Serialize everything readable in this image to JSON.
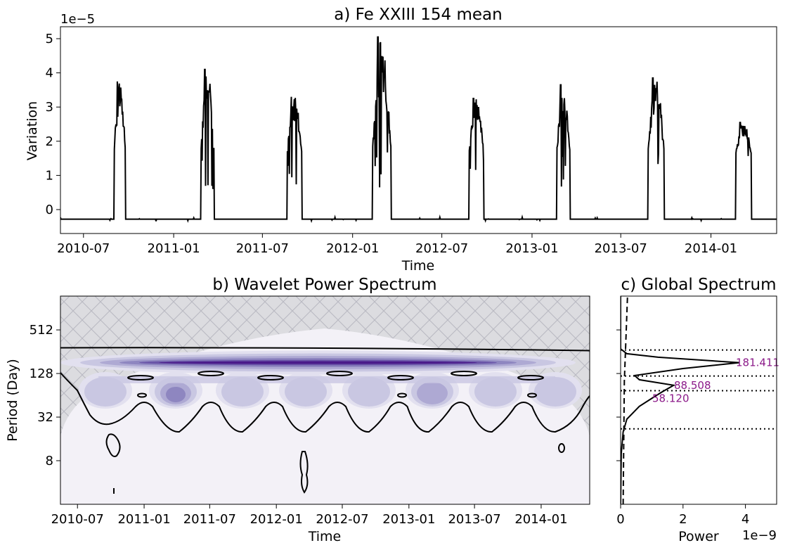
{
  "chart_data": [
    {
      "id": "a",
      "type": "line",
      "title": "a) Fe XXIII 154 mean",
      "xlabel": "Time",
      "ylabel": "Variation",
      "offset_label": "1e−5",
      "x_ticks": [
        "2010-07",
        "2011-01",
        "2011-07",
        "2012-01",
        "2012-07",
        "2013-01",
        "2013-07",
        "2014-01"
      ],
      "y_ticks": [
        "0",
        "1",
        "2",
        "3",
        "4",
        "5"
      ],
      "xlim": [
        "2010-05-15",
        "2014-05-15"
      ],
      "ylim": [
        -0.7,
        5.35
      ],
      "baseline": -0.28,
      "bursts": [
        {
          "start": "2010-09-01",
          "end": "2010-09-25",
          "peak": 3.75
        },
        {
          "start": "2011-02-25",
          "end": "2011-03-25",
          "peak": 4.1
        },
        {
          "start": "2011-08-20",
          "end": "2011-09-20",
          "peak": 3.3
        },
        {
          "start": "2012-02-10",
          "end": "2012-03-20",
          "peak": 5.05
        },
        {
          "start": "2012-08-25",
          "end": "2012-09-25",
          "peak": 3.25
        },
        {
          "start": "2013-02-20",
          "end": "2013-03-20",
          "peak": 3.65
        },
        {
          "start": "2013-08-25",
          "end": "2013-09-28",
          "peak": 3.85
        },
        {
          "start": "2014-02-20",
          "end": "2014-03-25",
          "peak": 2.55
        }
      ]
    },
    {
      "id": "b",
      "type": "heatmap",
      "title": "b) Wavelet Power Spectrum",
      "xlabel": "Time",
      "ylabel": "Period (Day)",
      "x_ticks": [
        "2010-07",
        "2011-01",
        "2011-07",
        "2012-01",
        "2012-07",
        "2013-01",
        "2013-07",
        "2014-01"
      ],
      "y_ticks": [
        "8",
        "32",
        "128",
        "512"
      ],
      "xlim": [
        "2010-05-15",
        "2014-05-15"
      ],
      "ylim_period": [
        2,
        1500
      ],
      "y_scale": "log2",
      "colormap": "Purples",
      "power_bands": [
        {
          "period": 181,
          "strength": 1.0
        },
        {
          "period": 88,
          "strength": 0.55
        },
        {
          "period": 58,
          "strength": 0.5
        }
      ],
      "cone_of_influence": "hatched"
    },
    {
      "id": "c",
      "type": "line",
      "title": "c) Global Spectrum",
      "xlabel": "Power",
      "offset_label": "1e−9",
      "x_ticks": [
        "0",
        "2",
        "4"
      ],
      "xlim": [
        0,
        5
      ],
      "peaks": [
        "181.411",
        "88.508",
        "58.120"
      ],
      "spectrum": [
        {
          "period": 2,
          "power": 0.0
        },
        {
          "period": 10,
          "power": 0.02
        },
        {
          "period": 20,
          "power": 0.08
        },
        {
          "period": 30,
          "power": 0.2
        },
        {
          "period": 45,
          "power": 0.6
        },
        {
          "period": 58,
          "power": 1.0
        },
        {
          "period": 70,
          "power": 1.3
        },
        {
          "period": 88,
          "power": 1.7
        },
        {
          "period": 105,
          "power": 0.6
        },
        {
          "period": 120,
          "power": 0.45
        },
        {
          "period": 150,
          "power": 2.0
        },
        {
          "period": 181,
          "power": 3.8
        },
        {
          "period": 215,
          "power": 1.2
        },
        {
          "period": 240,
          "power": 0.2
        },
        {
          "period": 280,
          "power": 0.0
        },
        {
          "period": 1500,
          "power": 0.0
        }
      ],
      "significance": [
        {
          "period": 2,
          "power": 0.08
        },
        {
          "period": 100,
          "power": 0.12
        },
        {
          "period": 500,
          "power": 0.18
        },
        {
          "period": 1500,
          "power": 0.22
        }
      ],
      "reference_lines": [
        270,
        118,
        74,
        22
      ]
    }
  ]
}
